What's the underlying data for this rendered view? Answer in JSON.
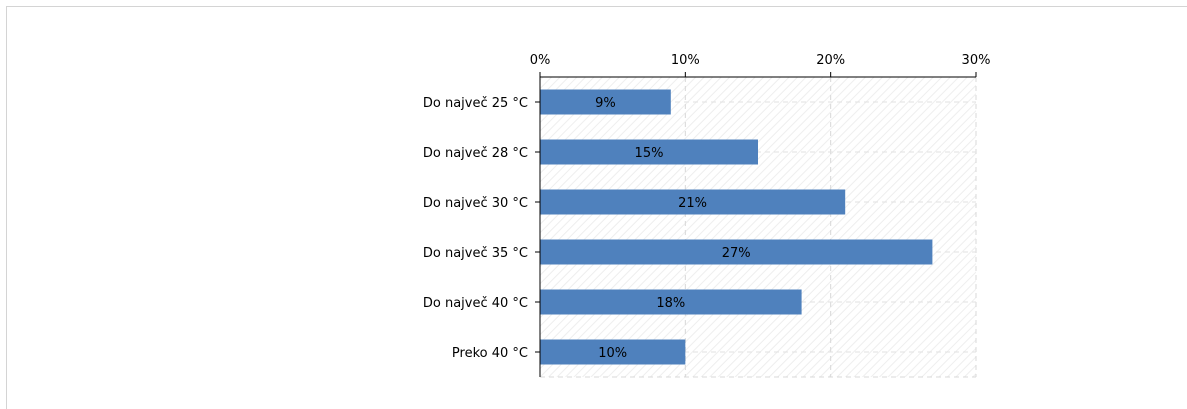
{
  "chart_data": {
    "type": "bar",
    "orientation": "horizontal",
    "title": "",
    "xlabel": "",
    "ylabel": "",
    "categories": [
      "Do največ 25 °C",
      "Do največ 28 °C",
      "Do največ 30 °C",
      "Do največ 35 °C",
      "Do največ 40 °C",
      "Preko 40 °C"
    ],
    "values": [
      9,
      15,
      21,
      27,
      18,
      10
    ],
    "value_labels": [
      "9%",
      "15%",
      "21%",
      "27%",
      "18%",
      "10%"
    ],
    "xlim": [
      0,
      30
    ],
    "x_ticks": [
      0,
      10,
      20,
      30
    ],
    "x_tick_labels": [
      "0%",
      "10%",
      "20%",
      "30%"
    ],
    "x_axis_position": "top",
    "grid": true,
    "legend": "none",
    "bar_color": "#4f81bd"
  }
}
